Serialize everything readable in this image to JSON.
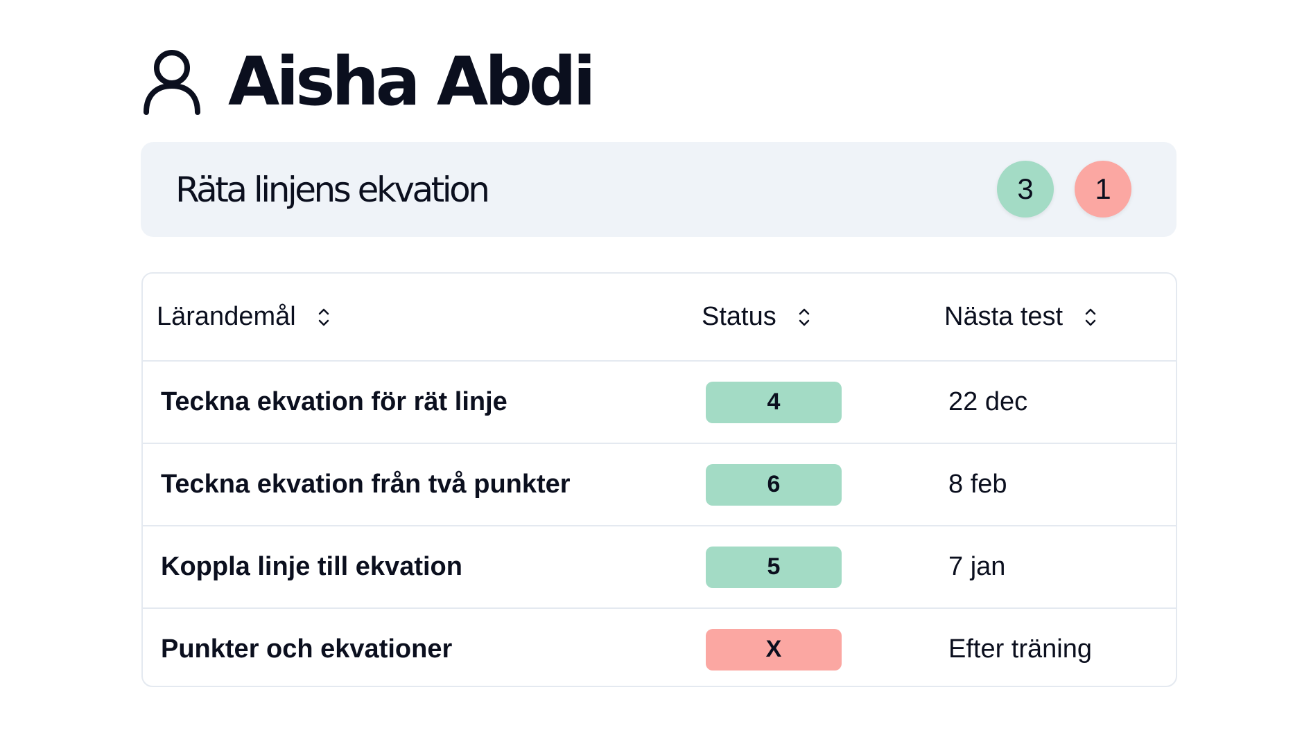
{
  "student": {
    "name": "Aisha Abdi",
    "icon": "user-icon"
  },
  "topic": {
    "title": "Räta linjens ekvation",
    "badges": [
      {
        "value": "3",
        "color": "#a3dbc5"
      },
      {
        "value": "1",
        "color": "#fba7a2"
      }
    ]
  },
  "table": {
    "headers": [
      "Lärandemål",
      "Status",
      "Nästa test"
    ],
    "rows": [
      {
        "goal": "Teckna ekvation för rät linje",
        "status": "4",
        "status_color": "#a3dbc5",
        "next": "22 dec"
      },
      {
        "goal": "Teckna ekvation från två punkter",
        "status": "6",
        "status_color": "#a3dbc5",
        "next": "8 feb"
      },
      {
        "goal": "Koppla linje till ekvation",
        "status": "5",
        "status_color": "#a3dbc5",
        "next": "7 jan"
      },
      {
        "goal": "Punkter och ekvationer",
        "status": "X",
        "status_color": "#fba7a2",
        "next": "Efter träning"
      }
    ]
  }
}
